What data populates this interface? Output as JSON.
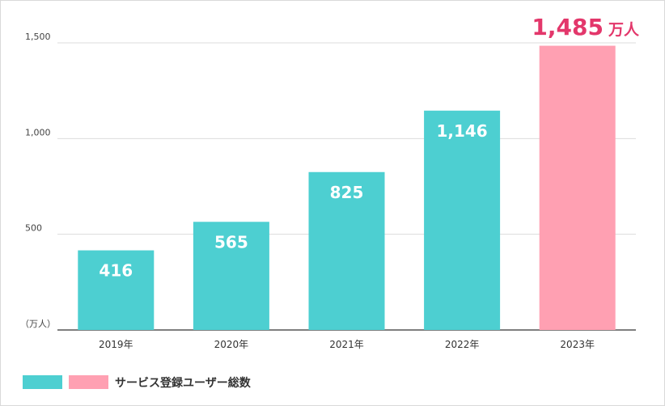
{
  "chart_data": {
    "type": "bar",
    "categories": [
      "2019年",
      "2020年",
      "2021年",
      "2022年",
      "2023年"
    ],
    "values": [
      416,
      565,
      825,
      1146,
      1485
    ],
    "value_labels": [
      "416",
      "565",
      "825",
      "1,146",
      "1,485"
    ],
    "highlight_unit": "万人",
    "y_unit_label": "（万人）",
    "ylim": [
      0,
      1500
    ],
    "yticks": [
      500,
      1000,
      1500
    ],
    "ytick_labels": [
      "500",
      "1,000",
      "1,500"
    ],
    "grid": true,
    "legend_position": "bottom-left",
    "legend_label": "サービス登録ユーザー総数",
    "colors": {
      "bar": "#4dcfd1",
      "highlight_bar": "#ffa0b2",
      "highlight_text": "#e3376b",
      "grid": "#dcdcdc",
      "axis": "#555555"
    }
  }
}
